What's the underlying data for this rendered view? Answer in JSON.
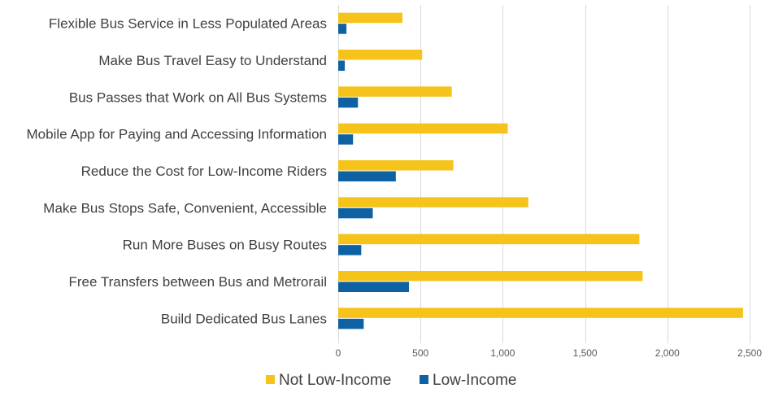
{
  "chart_data": {
    "type": "bar",
    "orientation": "horizontal",
    "categories": [
      "Flexible Bus Service in Less Populated Areas",
      "Make Bus Travel Easy to Understand",
      "Bus Passes that Work on All Bus Systems",
      "Mobile App for Paying and Accessing Information",
      "Reduce the Cost for Low-Income Riders",
      "Make Bus Stops Safe, Convenient, Accessible",
      "Run More Buses on Busy Routes",
      "Free Transfers between Bus and Metrorail",
      "Build Dedicated Bus Lanes"
    ],
    "series": [
      {
        "name": "Not Low-Income",
        "color": "#F5C31A",
        "values": [
          390,
          510,
          690,
          1030,
          700,
          1155,
          1830,
          1850,
          2460
        ]
      },
      {
        "name": "Low-Income",
        "color": "#0E62A4",
        "values": [
          50,
          40,
          120,
          90,
          350,
          210,
          140,
          430,
          155
        ]
      }
    ],
    "xlim": [
      0,
      2500
    ],
    "xticks": [
      0,
      500,
      1000,
      1500,
      2000,
      2500
    ],
    "xtick_labels": [
      "0",
      "500",
      "1,000",
      "1,500",
      "2,000",
      "2,500"
    ],
    "grid": "vertical",
    "legend": "bottom-center",
    "title": "",
    "xlabel": "",
    "ylabel": ""
  }
}
